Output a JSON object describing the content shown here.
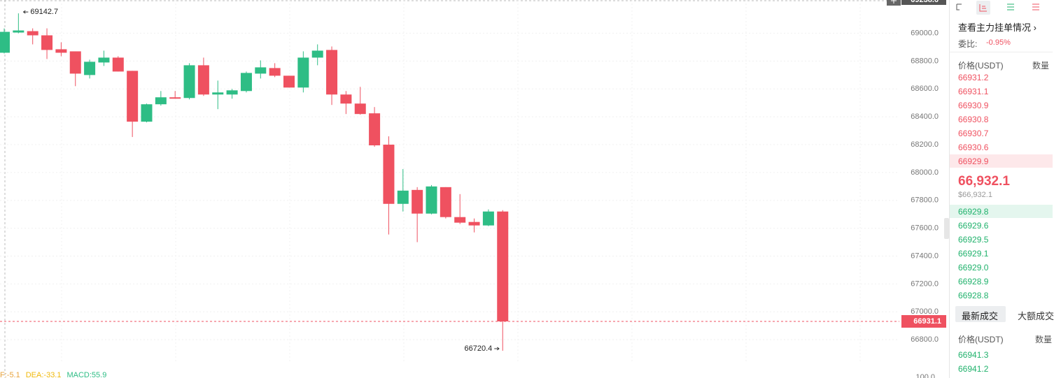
{
  "chart": {
    "type": "candlestick",
    "open": [
      68860,
      69005,
      69015,
      68985,
      68885,
      68870,
      68700,
      68790,
      68825,
      68730,
      68365,
      68490,
      68540,
      68535,
      68770,
      68560,
      68560,
      68585,
      68710,
      68750,
      68695,
      68610,
      68825,
      68880,
      68560,
      68495,
      68425,
      68200,
      67775,
      67875,
      67705,
      67895,
      67680,
      67645,
      67620,
      67720
    ],
    "high": [
      69035,
      69142.7,
      69035,
      69035,
      68935,
      68870,
      68810,
      68875,
      68835,
      68730,
      68495,
      68585,
      68585,
      68785,
      68825,
      68660,
      68600,
      68725,
      68805,
      68785,
      68695,
      68870,
      68920,
      68905,
      68585,
      68615,
      68470,
      68260,
      68025,
      67895,
      67910,
      67895,
      67845,
      67670,
      67735,
      67730
    ],
    "low": [
      68855,
      69000,
      68920,
      68815,
      68835,
      68620,
      68675,
      68765,
      68725,
      68255,
      68360,
      68480,
      68530,
      68525,
      68550,
      68455,
      68530,
      68575,
      68675,
      68685,
      68610,
      68575,
      68770,
      68485,
      68420,
      68415,
      68185,
      67555,
      67720,
      67500,
      67700,
      67670,
      67630,
      67570,
      67615,
      66720.4
    ],
    "close": [
      69010,
      69020,
      68985,
      68880,
      68860,
      68710,
      68795,
      68825,
      68725,
      68365,
      68490,
      68540,
      68530,
      68770,
      68560,
      68575,
      68590,
      68715,
      68755,
      68695,
      68610,
      68825,
      68875,
      68560,
      68495,
      68420,
      68195,
      67775,
      67870,
      67705,
      67900,
      67680,
      67640,
      67620,
      67720,
      66931.1
    ],
    "up_color": "#2ebd85",
    "down_color": "#ef5160",
    "ylim": [
      66630,
      69238.6
    ],
    "yticks": [
      {
        "value": 66800,
        "label": "66800.0"
      },
      {
        "value": 67000,
        "label": "67000.0"
      },
      {
        "value": 67200,
        "label": "67200.0"
      },
      {
        "value": 67400,
        "label": "67400.0"
      },
      {
        "value": 67600,
        "label": "67600.0"
      },
      {
        "value": 67800,
        "label": "67800.0"
      },
      {
        "value": 68000,
        "label": "68000.0"
      },
      {
        "value": 68200,
        "label": "68200.0"
      },
      {
        "value": 68400,
        "label": "68400.0"
      },
      {
        "value": 68600,
        "label": "68600.0"
      },
      {
        "value": 68800,
        "label": "68800.0"
      },
      {
        "value": 69000,
        "label": "69000.0"
      }
    ],
    "top_price": 69238.6,
    "last_price": 66931.1,
    "high_mark": 69142.7,
    "low_mark": 66720.4,
    "indicators": [
      {
        "text": "F:-5.1",
        "color": "#e8a33d"
      },
      {
        "text": "DEA:-33.1",
        "color": "#f0b90b"
      },
      {
        "text": "MACD:55.9",
        "color": "#2ebd85"
      }
    ],
    "macd_axis_label": "100.0"
  },
  "order_book": {
    "title": "查看主力挂单情况",
    "ratio_label": "委比:",
    "ratio": "-0.95%",
    "price_header": "价格(USDT)",
    "qty_header": "数量",
    "asks": [
      "66931.2",
      "66931.1",
      "66930.9",
      "66930.8",
      "66930.7",
      "66930.6",
      "66929.9"
    ],
    "mid_price": "66,932.1",
    "mid_usd": "$66,932.1",
    "bids": [
      "66929.8",
      "66929.6",
      "66929.5",
      "66929.1",
      "66929.0",
      "66928.9",
      "66928.8"
    ],
    "tabs": [
      "最新成交",
      "大额成交"
    ],
    "trade_price_header": "价格(USDT)",
    "trade_qty_header": "数量",
    "trades": [
      "66941.3",
      "66941.2"
    ]
  }
}
